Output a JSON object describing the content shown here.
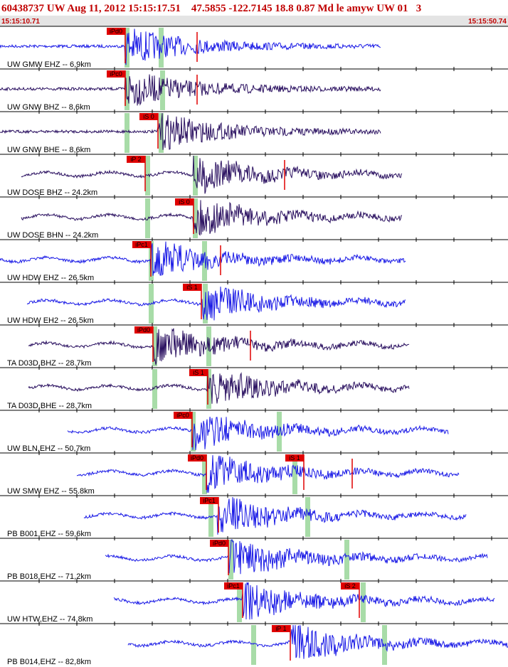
{
  "header": {
    "title": "60438737 UW Aug 11, 2012 15:15:17.51    47.5855 -122.7145 18.8 0.87 Md le amyw UW 01   3",
    "start_time": "15:15:10.71",
    "end_time": "15:15:50.74"
  },
  "traces": [
    {
      "label": "UW GMW EHZ -- 6,9km",
      "picks": [
        "iPd0"
      ]
    },
    {
      "label": "UW GNW BHZ -- 8,6km",
      "picks": [
        "iPc0"
      ]
    },
    {
      "label": "UW GNW BHE -- 8,6km",
      "picks": [
        "iS 0"
      ]
    },
    {
      "label": "UW DOSE BHZ -- 24.2km",
      "picks": [
        "iP 2"
      ]
    },
    {
      "label": "UW DOSE BHN -- 24.2km",
      "picks": [
        "iS 0"
      ]
    },
    {
      "label": "UW HDW EHZ -- 26.5km",
      "picks": [
        "iPc1"
      ]
    },
    {
      "label": "UW HDW EH2 -- 26.5km",
      "picks": [
        "iS 1"
      ]
    },
    {
      "label": "TA D03D,BHZ -- 28.7km",
      "picks": [
        "iPd0"
      ]
    },
    {
      "label": "TA D03D,BHE -- 28.7km",
      "picks": [
        "iS 1"
      ]
    },
    {
      "label": "UW BLN,EHZ -- 50,7km",
      "picks": [
        "iPc0"
      ]
    },
    {
      "label": "UW SMW EHZ -- 55.8km",
      "picks": [
        "iPd0",
        "iS 1"
      ]
    },
    {
      "label": "PB B001,EHZ -- 59,6km",
      "picks": [
        "iPc1"
      ]
    },
    {
      "label": "PB B018,EHZ -- 71,2km",
      "picks": [
        "iPd0"
      ]
    },
    {
      "label": "UW HTW,EHZ -- 74.8km",
      "picks": [
        "iPc1",
        "iS 2"
      ]
    },
    {
      "label": "PB B014,EHZ -- 82,8km",
      "picks": [
        "iP 1"
      ]
    }
  ]
}
